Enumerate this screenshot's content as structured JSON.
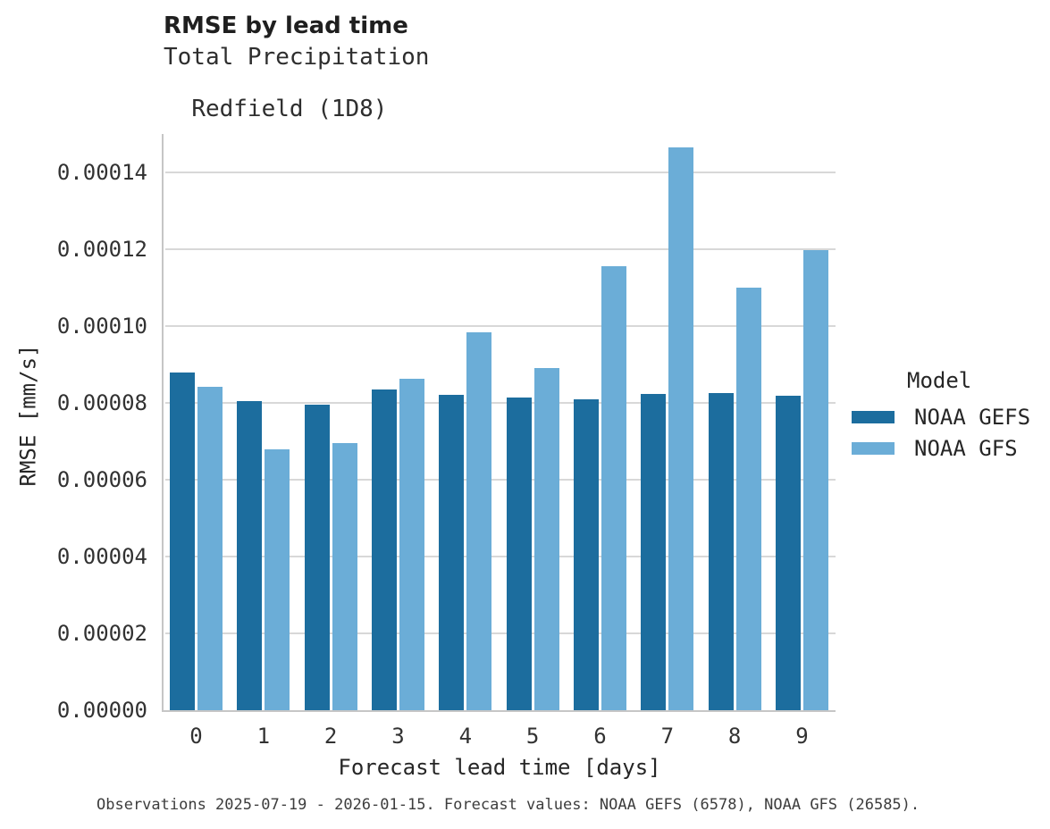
{
  "title": "RMSE by lead time",
  "subtitle_line1": "Total Precipitation",
  "subtitle_line2": "Redfield (1D8)",
  "footer": "Observations 2025-07-19 - 2026-01-15. Forecast values: NOAA GEFS (6578), NOAA GFS (26585).",
  "colors": {
    "gefs_dark_blue": "#1c6d9e",
    "gfs_light_blue": "#6badd7",
    "gridline_gray": "#d8d8d8",
    "spine_gray": "#c6c6c6",
    "text_dark": "#262626"
  },
  "legend": {
    "title": "Model"
  },
  "chart_data": {
    "type": "bar",
    "title": "RMSE by lead time",
    "subtitle": [
      "Total Precipitation",
      "Redfield (1D8)"
    ],
    "xlabel": "Forecast lead time [days]",
    "ylabel": "RMSE [mm/s]",
    "categories": [
      "0",
      "1",
      "2",
      "3",
      "4",
      "5",
      "6",
      "7",
      "8",
      "9"
    ],
    "ylim": [
      0,
      0.00015
    ],
    "ytick_step": 2e-05,
    "ytick_labels": [
      "0.00000",
      "0.00002",
      "0.00004",
      "0.00006",
      "0.00008",
      "0.00010",
      "0.00012",
      "0.00014"
    ],
    "grid": "horizontal",
    "legend_title": "Model",
    "legend_position": "right",
    "series": [
      {
        "name": "NOAA GEFS",
        "color": "#1c6d9e",
        "values": [
          8.79e-05,
          8.05e-05,
          7.96e-05,
          8.34e-05,
          8.21e-05,
          8.14e-05,
          8.09e-05,
          8.24e-05,
          8.26e-05,
          8.19e-05
        ]
      },
      {
        "name": "NOAA GFS",
        "color": "#6badd7",
        "values": [
          8.41e-05,
          6.79e-05,
          6.95e-05,
          8.62e-05,
          9.84e-05,
          8.9e-05,
          0.0001157,
          0.0001466,
          0.0001099,
          0.0001197
        ]
      }
    ]
  }
}
